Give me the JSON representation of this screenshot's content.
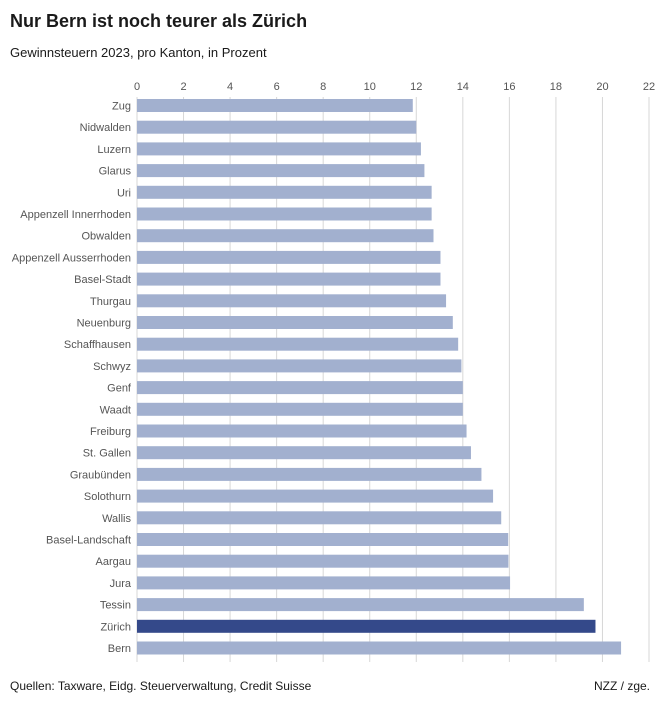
{
  "header": {
    "title": "Nur Bern ist noch teurer als Zürich",
    "subtitle": "Gewinnsteuern 2023, pro Kanton, in Prozent"
  },
  "footer": {
    "source": "Quellen: Taxware, Eidg. Steuerverwaltung, Credit Suisse",
    "credit": "NZZ / zge."
  },
  "colors": {
    "bar": "#a2b0cf",
    "highlight": "#34498a",
    "grid": "#d7d7d7",
    "label": "#555555"
  },
  "chart_data": {
    "type": "bar",
    "orientation": "horizontal",
    "title": "Nur Bern ist noch teurer als Zürich",
    "subtitle": "Gewinnsteuern 2023, pro Kanton, in Prozent",
    "xlim": [
      0,
      22
    ],
    "xticks": [
      0,
      2,
      4,
      6,
      8,
      10,
      12,
      14,
      16,
      18,
      20,
      22
    ],
    "grid": true,
    "highlight": "Zürich",
    "categories": [
      "Zug",
      "Nidwalden",
      "Luzern",
      "Glarus",
      "Uri",
      "Appenzell Innerrhoden",
      "Obwalden",
      "Appenzell Ausserrhoden",
      "Basel-Stadt",
      "Thurgau",
      "Neuenburg",
      "Schaffhausen",
      "Schwyz",
      "Genf",
      "Waadt",
      "Freiburg",
      "St. Gallen",
      "Graubünden",
      "Solothurn",
      "Wallis",
      "Basel-Landschaft",
      "Aargau",
      "Jura",
      "Tessin",
      "Zürich",
      "Bern"
    ],
    "values": [
      11.85,
      12.0,
      12.2,
      12.35,
      12.66,
      12.66,
      12.74,
      13.04,
      13.04,
      13.28,
      13.57,
      13.8,
      13.94,
      14.0,
      14.0,
      14.16,
      14.35,
      14.8,
      15.3,
      15.65,
      15.95,
      15.96,
      16.03,
      19.2,
      19.7,
      20.8
    ]
  }
}
